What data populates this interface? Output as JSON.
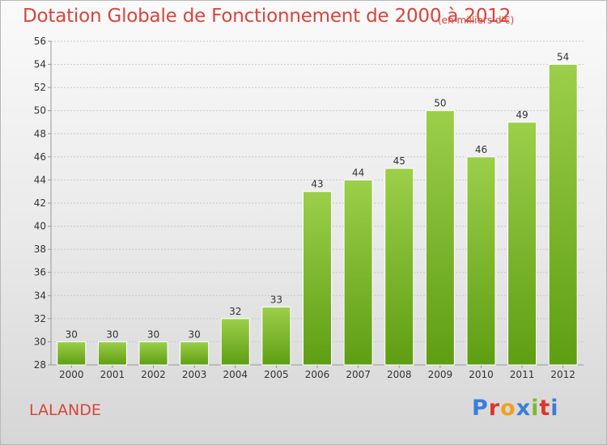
{
  "header": {
    "title": "Dotation Globale de Fonctionnement de 2000 à 2012",
    "unit": "(en milliers d'€)"
  },
  "footer": {
    "commune": "LALANDE",
    "logo_text": "Proxiti"
  },
  "colors": {
    "title": "#d9453a",
    "bar_top": "#9ccf4a",
    "bar_bottom": "#5e9e12",
    "grid": "#c8c8c8",
    "logo_letters": [
      "#3b7dd8",
      "#e0352b",
      "#f0a020",
      "#3b7dd8",
      "#7dbb2a",
      "#e0352b",
      "#3b7dd8"
    ]
  },
  "chart_data": {
    "type": "bar",
    "title": "Dotation Globale de Fonctionnement de 2000 à 2012",
    "xlabel": "",
    "ylabel": "",
    "ylim": [
      28,
      56
    ],
    "yticks": [
      28,
      30,
      32,
      34,
      36,
      38,
      40,
      42,
      44,
      46,
      48,
      50,
      52,
      54,
      56
    ],
    "grid": true,
    "categories": [
      "2000",
      "2001",
      "2002",
      "2003",
      "2004",
      "2005",
      "2006",
      "2007",
      "2008",
      "2009",
      "2010",
      "2011",
      "2012"
    ],
    "values": [
      30,
      30,
      30,
      30,
      32,
      33,
      43,
      44,
      45,
      50,
      46,
      49,
      54
    ]
  }
}
